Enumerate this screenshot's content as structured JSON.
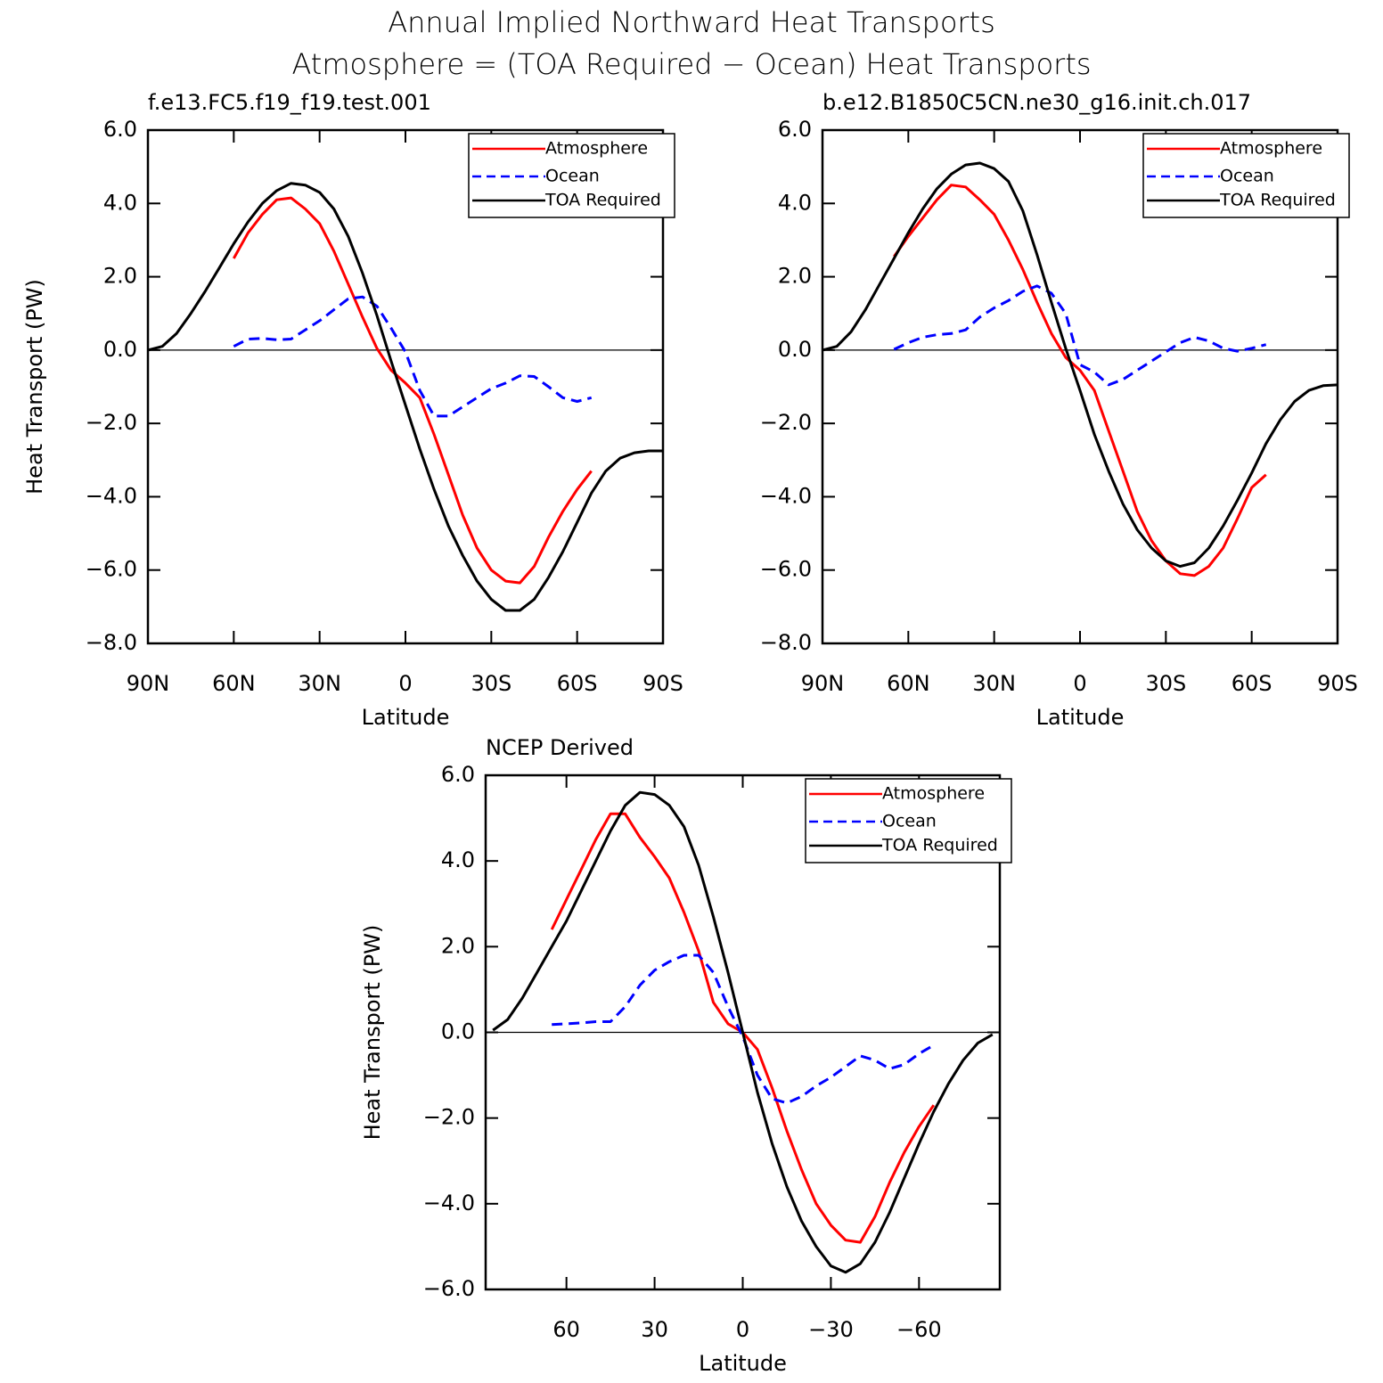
{
  "title": "Annual Implied Northward Heat Transports",
  "subtitle": "Atmosphere = (TOA Required − Ocean) Heat Transports",
  "chart_data": [
    {
      "type": "line",
      "title": "f.e13.FC5.f19_f19.test.001",
      "xlabel": "Latitude",
      "ylabel": "Heat Transport (PW)",
      "x": [
        90,
        85,
        80,
        75,
        70,
        65,
        60,
        55,
        50,
        45,
        40,
        35,
        30,
        25,
        20,
        15,
        10,
        5,
        0,
        -5,
        -10,
        -15,
        -20,
        -25,
        -30,
        -35,
        -40,
        -45,
        -50,
        -55,
        -60,
        -65,
        -70,
        -75,
        -80,
        -85,
        -90
      ],
      "xlim": [
        90,
        -90
      ],
      "xticks": [
        {
          "value": 90,
          "label": "90N"
        },
        {
          "value": 60,
          "label": "60N"
        },
        {
          "value": 30,
          "label": "30N"
        },
        0,
        {
          "value": -30,
          "label": "30S"
        },
        {
          "value": -60,
          "label": "60S"
        },
        {
          "value": -90,
          "label": "90S"
        }
      ],
      "ylim": [
        -8,
        6
      ],
      "yticks": [
        {
          "value": 6,
          "label": "6.0"
        },
        {
          "value": 4,
          "label": "4.0"
        },
        {
          "value": 2,
          "label": "2.0"
        },
        {
          "value": 0,
          "label": "0.0"
        },
        {
          "value": -2,
          "label": "−2.0"
        },
        {
          "value": -4,
          "label": "−4.0"
        },
        {
          "value": -6,
          "label": "−6.0"
        },
        {
          "value": -8,
          "label": "−8.0"
        }
      ],
      "zero_line": true,
      "legend": "upper right",
      "series": [
        {
          "name": "Atmosphere",
          "color": "#ff0000",
          "dashed": false,
          "values": [
            null,
            null,
            null,
            null,
            null,
            null,
            2.5,
            3.2,
            3.7,
            4.1,
            4.15,
            3.85,
            3.45,
            2.7,
            1.8,
            0.9,
            0.05,
            -0.55,
            -0.9,
            -1.3,
            -2.3,
            -3.4,
            -4.5,
            -5.4,
            -6.0,
            -6.3,
            -6.35,
            -5.9,
            -5.1,
            -4.4,
            -3.8,
            -3.3,
            null,
            null,
            null,
            null,
            null
          ]
        },
        {
          "name": "Ocean",
          "color": "#0000ff",
          "dashed": true,
          "values": [
            null,
            null,
            null,
            null,
            null,
            null,
            0.1,
            0.3,
            0.32,
            0.28,
            0.3,
            0.55,
            0.8,
            1.1,
            1.4,
            1.45,
            1.2,
            0.6,
            -0.05,
            -1.1,
            -1.8,
            -1.8,
            -1.55,
            -1.3,
            -1.05,
            -0.9,
            -0.7,
            -0.72,
            -1.0,
            -1.3,
            -1.4,
            -1.3,
            null,
            null,
            null,
            null,
            null
          ]
        },
        {
          "name": "TOA Required",
          "color": "#000000",
          "dashed": false,
          "values": [
            0,
            0.1,
            0.45,
            1.0,
            1.6,
            2.25,
            2.9,
            3.5,
            4.0,
            4.35,
            4.55,
            4.5,
            4.3,
            3.85,
            3.1,
            2.1,
            0.95,
            -0.3,
            -1.5,
            -2.7,
            -3.8,
            -4.8,
            -5.6,
            -6.3,
            -6.8,
            -7.1,
            -7.1,
            -6.8,
            -6.2,
            -5.5,
            -4.7,
            -3.9,
            -3.3,
            -2.95,
            -2.8,
            -2.75,
            -2.75
          ]
        }
      ]
    },
    {
      "type": "line",
      "title": "b.e12.B1850C5CN.ne30_g16.init.ch.017",
      "xlabel": "Latitude",
      "x": [
        90,
        85,
        80,
        75,
        70,
        65,
        60,
        55,
        50,
        45,
        40,
        35,
        30,
        25,
        20,
        15,
        10,
        5,
        0,
        -5,
        -10,
        -15,
        -20,
        -25,
        -30,
        -35,
        -40,
        -45,
        -50,
        -55,
        -60,
        -65,
        -70,
        -75,
        -80,
        -85,
        -90
      ],
      "xlim": [
        90,
        -90
      ],
      "xticks": [
        {
          "value": 90,
          "label": "90N"
        },
        {
          "value": 60,
          "label": "60N"
        },
        {
          "value": 30,
          "label": "30N"
        },
        0,
        {
          "value": -30,
          "label": "30S"
        },
        {
          "value": -60,
          "label": "60S"
        },
        {
          "value": -90,
          "label": "90S"
        }
      ],
      "ylim": [
        -8,
        6
      ],
      "yticks": [
        {
          "value": 6,
          "label": "6.0"
        },
        {
          "value": 4,
          "label": "4.0"
        },
        {
          "value": 2,
          "label": "2.0"
        },
        {
          "value": 0,
          "label": "0.0"
        },
        {
          "value": -2,
          "label": "−2.0"
        },
        {
          "value": -4,
          "label": "−4.0"
        },
        {
          "value": -6,
          "label": "−6.0"
        },
        {
          "value": -8,
          "label": "−8.0"
        }
      ],
      "zero_line": true,
      "legend": "upper right",
      "series": [
        {
          "name": "Atmosphere",
          "color": "#ff0000",
          "dashed": false,
          "values": [
            null,
            null,
            null,
            null,
            null,
            2.55,
            3.1,
            3.6,
            4.1,
            4.5,
            4.45,
            4.1,
            3.7,
            3.0,
            2.2,
            1.3,
            0.45,
            -0.2,
            -0.55,
            -1.1,
            -2.2,
            -3.3,
            -4.4,
            -5.2,
            -5.75,
            -6.1,
            -6.15,
            -5.9,
            -5.4,
            -4.6,
            -3.75,
            -3.4,
            null,
            null,
            null,
            null,
            null
          ]
        },
        {
          "name": "Ocean",
          "color": "#0000ff",
          "dashed": true,
          "values": [
            null,
            null,
            null,
            null,
            null,
            0.02,
            0.2,
            0.35,
            0.42,
            0.45,
            0.55,
            0.9,
            1.15,
            1.35,
            1.6,
            1.75,
            1.55,
            1.0,
            -0.4,
            -0.6,
            -0.95,
            -0.8,
            -0.55,
            -0.3,
            -0.05,
            0.2,
            0.35,
            0.25,
            0.05,
            -0.03,
            0.05,
            0.15,
            null,
            null,
            null,
            null,
            null
          ]
        },
        {
          "name": "TOA Required",
          "color": "#000000",
          "dashed": false,
          "values": [
            0,
            0.1,
            0.5,
            1.1,
            1.8,
            2.5,
            3.2,
            3.85,
            4.4,
            4.8,
            5.05,
            5.1,
            4.95,
            4.6,
            3.8,
            2.6,
            1.3,
            0.05,
            -1.1,
            -2.3,
            -3.3,
            -4.2,
            -4.9,
            -5.4,
            -5.75,
            -5.9,
            -5.8,
            -5.4,
            -4.8,
            -4.1,
            -3.35,
            -2.55,
            -1.9,
            -1.4,
            -1.1,
            -0.97,
            -0.95
          ]
        }
      ]
    },
    {
      "type": "line",
      "title": "NCEP Derived",
      "xlabel": "Latitude",
      "ylabel": "Heat Transport (PW)",
      "x": [
        85,
        80,
        75,
        70,
        65,
        60,
        55,
        50,
        45,
        40,
        35,
        30,
        25,
        20,
        15,
        10,
        5,
        0,
        -5,
        -10,
        -15,
        -20,
        -25,
        -30,
        -35,
        -40,
        -45,
        -50,
        -55,
        -60,
        -65,
        -70,
        -75,
        -80,
        -85
      ],
      "xlim": [
        87.5,
        -87.5
      ],
      "xticks": [
        60,
        30,
        0,
        {
          "value": -30,
          "label": "−30"
        },
        {
          "value": -60,
          "label": "−60"
        }
      ],
      "ylim": [
        -6,
        6
      ],
      "yticks": [
        {
          "value": 6,
          "label": "6.0"
        },
        {
          "value": 4,
          "label": "4.0"
        },
        {
          "value": 2,
          "label": "2.0"
        },
        {
          "value": 0,
          "label": "0.0"
        },
        {
          "value": -2,
          "label": "−2.0"
        },
        {
          "value": -4,
          "label": "−4.0"
        },
        {
          "value": -6,
          "label": "−6.0"
        }
      ],
      "zero_line": true,
      "legend": "upper right",
      "series": [
        {
          "name": "Atmosphere",
          "color": "#ff0000",
          "dashed": false,
          "values": [
            null,
            null,
            null,
            null,
            2.4,
            3.1,
            3.8,
            4.5,
            5.1,
            5.1,
            4.55,
            4.1,
            3.6,
            2.8,
            1.9,
            0.7,
            0.2,
            0,
            -0.4,
            -1.3,
            -2.3,
            -3.2,
            -4.0,
            -4.5,
            -4.85,
            -4.9,
            -4.3,
            -3.5,
            -2.8,
            -2.2,
            -1.7,
            null,
            null,
            null,
            null
          ]
        },
        {
          "name": "Ocean",
          "color": "#0000ff",
          "dashed": true,
          "values": [
            null,
            null,
            null,
            null,
            0.18,
            0.2,
            0.22,
            0.25,
            0.25,
            0.6,
            1.1,
            1.45,
            1.65,
            1.8,
            1.8,
            1.4,
            0.6,
            -0.1,
            -1.0,
            -1.55,
            -1.65,
            -1.5,
            -1.25,
            -1.05,
            -0.8,
            -0.55,
            -0.65,
            -0.85,
            -0.75,
            -0.5,
            -0.3,
            null,
            null,
            null,
            null
          ]
        },
        {
          "name": "TOA Required",
          "color": "#000000",
          "dashed": false,
          "values": [
            0.05,
            0.3,
            0.8,
            1.4,
            2.0,
            2.6,
            3.3,
            4.0,
            4.7,
            5.3,
            5.6,
            5.55,
            5.3,
            4.8,
            3.9,
            2.7,
            1.4,
            0,
            -1.4,
            -2.6,
            -3.6,
            -4.4,
            -5.0,
            -5.45,
            -5.6,
            -5.4,
            -4.9,
            -4.2,
            -3.4,
            -2.6,
            -1.85,
            -1.2,
            -0.65,
            -0.25,
            -0.05
          ]
        }
      ]
    }
  ]
}
